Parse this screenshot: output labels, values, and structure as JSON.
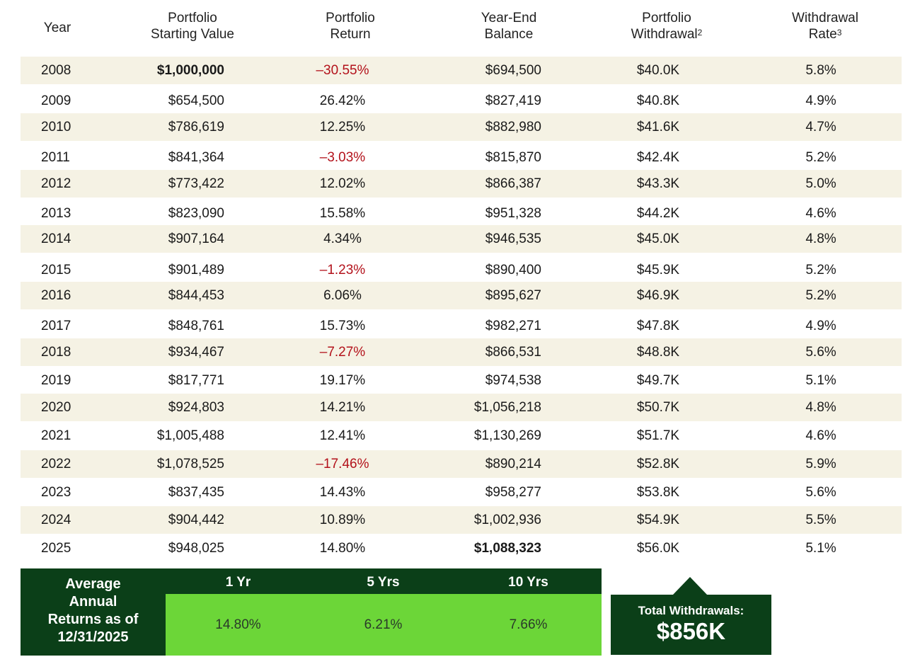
{
  "headers": {
    "year": "Year",
    "start_l1": "Portfolio",
    "start_l2": "Starting Value",
    "return_l1": "Portfolio",
    "return_l2": "Return",
    "balance_l1": "Year-End",
    "balance_l2": "Balance",
    "withdrawal_l1": "Portfolio",
    "withdrawal_l2": "Withdrawal",
    "withdrawal_sup": "2",
    "rate_l1": "Withdrawal",
    "rate_l2": "Rate",
    "rate_sup": "3"
  },
  "rows": [
    {
      "year": "2008",
      "start": "$1,000,000",
      "ret": "–30.55%",
      "bal": "$694,500",
      "wd": "$40.0K",
      "rate": "5.8%"
    },
    {
      "year": "2009",
      "start": "$654,500",
      "ret": "26.42%",
      "bal": "$827,419",
      "wd": "$40.8K",
      "rate": "4.9%"
    },
    {
      "year": "2010",
      "start": "$786,619",
      "ret": "12.25%",
      "bal": "$882,980",
      "wd": "$41.6K",
      "rate": "4.7%"
    },
    {
      "year": "2011",
      "start": "$841,364",
      "ret": "–3.03%",
      "bal": "$815,870",
      "wd": "$42.4K",
      "rate": "5.2%"
    },
    {
      "year": "2012",
      "start": "$773,422",
      "ret": "12.02%",
      "bal": "$866,387",
      "wd": "$43.3K",
      "rate": "5.0%"
    },
    {
      "year": "2013",
      "start": "$823,090",
      "ret": "15.58%",
      "bal": "$951,328",
      "wd": "$44.2K",
      "rate": "4.6%"
    },
    {
      "year": "2014",
      "start": "$907,164",
      "ret": "4.34%",
      "bal": "$946,535",
      "wd": "$45.0K",
      "rate": "4.8%"
    },
    {
      "year": "2015",
      "start": "$901,489",
      "ret": "–1.23%",
      "bal": "$890,400",
      "wd": "$45.9K",
      "rate": "5.2%"
    },
    {
      "year": "2016",
      "start": "$844,453",
      "ret": "6.06%",
      "bal": "$895,627",
      "wd": "$46.9K",
      "rate": "5.2%"
    },
    {
      "year": "2017",
      "start": "$848,761",
      "ret": "15.73%",
      "bal": "$982,271",
      "wd": "$47.8K",
      "rate": "4.9%"
    },
    {
      "year": "2018",
      "start": "$934,467",
      "ret": "–7.27%",
      "bal": "$866,531",
      "wd": "$48.8K",
      "rate": "5.6%"
    },
    {
      "year": "2019",
      "start": "$817,771",
      "ret": "19.17%",
      "bal": "$974,538",
      "wd": "$49.7K",
      "rate": "5.1%"
    },
    {
      "year": "2020",
      "start": "$924,803",
      "ret": "14.21%",
      "bal": "$1,056,218",
      "wd": "$50.7K",
      "rate": "4.8%"
    },
    {
      "year": "2021",
      "start": "$1,005,488",
      "ret": "12.41%",
      "bal": "$1,130,269",
      "wd": "$51.7K",
      "rate": "4.6%"
    },
    {
      "year": "2022",
      "start": "$1,078,525",
      "ret": "–17.46%",
      "bal": "$890,214",
      "wd": "$52.8K",
      "rate": "5.9%"
    },
    {
      "year": "2023",
      "start": "$837,435",
      "ret": "14.43%",
      "bal": "$958,277",
      "wd": "$53.8K",
      "rate": "5.6%"
    },
    {
      "year": "2024",
      "start": "$904,442",
      "ret": "10.89%",
      "bal": "$1,002,936",
      "wd": "$54.9K",
      "rate": "5.5%"
    },
    {
      "year": "2025",
      "start": "$948,025",
      "ret": "14.80%",
      "bal": "$1,088,323",
      "wd": "$56.0K",
      "rate": "5.1%"
    }
  ],
  "average": {
    "label_l1": "Average",
    "label_l2": "Annual",
    "label_l3": "Returns as of",
    "label_l4": "12/31/2025",
    "periods": [
      "1 Yr",
      "5 Yrs",
      "10 Yrs"
    ],
    "values": [
      "14.80%",
      "6.21%",
      "7.66%"
    ]
  },
  "total": {
    "label": "Total Withdrawals:",
    "value": "$856K"
  },
  "colors": {
    "negative": "#b3121b",
    "dark_green": "#0b3f18",
    "lime": "#6cd638",
    "row_shade": "#f5f2e4"
  }
}
